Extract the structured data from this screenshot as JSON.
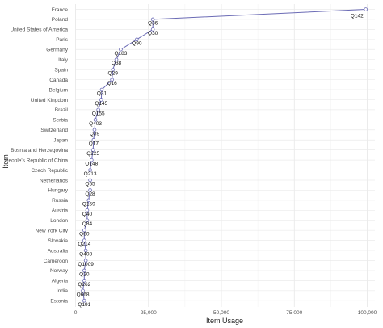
{
  "chart_data": {
    "type": "line",
    "xlabel": "Item Usage",
    "ylabel": "Item",
    "xlim": [
      0,
      100000
    ],
    "x_ticks": [
      0,
      25000,
      50000,
      75000,
      100000
    ],
    "x_tick_labels": [
      "0",
      "25,000",
      "50,000",
      "75,000",
      "100,000"
    ],
    "grid": true,
    "line_color": "#6b6bb5",
    "categories": [
      "France",
      "Poland",
      "United States of America",
      "Paris",
      "Germany",
      "Italy",
      "Spain",
      "Canada",
      "Belgium",
      "United Kingdom",
      "Brazil",
      "Serbia",
      "Switzerland",
      "Japan",
      "Bosnia and Herzegovina",
      "People's Republic of China",
      "Czech Republic",
      "Netherlands",
      "Hungary",
      "Russia",
      "Austria",
      "London",
      "New York City",
      "Slovakia",
      "Australia",
      "Cameroon",
      "Norway",
      "Algeria",
      "India",
      "Estonia"
    ],
    "values": [
      99500,
      26500,
      26500,
      21000,
      15500,
      14000,
      12800,
      12500,
      9000,
      8800,
      7800,
      6800,
      6500,
      6200,
      6000,
      5500,
      5000,
      5000,
      5000,
      4500,
      4000,
      4000,
      3000,
      3000,
      3500,
      3500,
      3000,
      3000,
      2500,
      3000
    ],
    "point_labels": [
      "Q142",
      "Q36",
      "Q30",
      "Q90",
      "Q183",
      "Q38",
      "Q29",
      "Q16",
      "Q31",
      "Q145",
      "Q155",
      "Q403",
      "Q39",
      "Q17",
      "Q225",
      "Q148",
      "Q213",
      "Q55",
      "Q28",
      "Q159",
      "Q40",
      "Q84",
      "Q60",
      "Q214",
      "Q408",
      "Q1009",
      "Q20",
      "Q262",
      "Q668",
      "Q191"
    ]
  }
}
